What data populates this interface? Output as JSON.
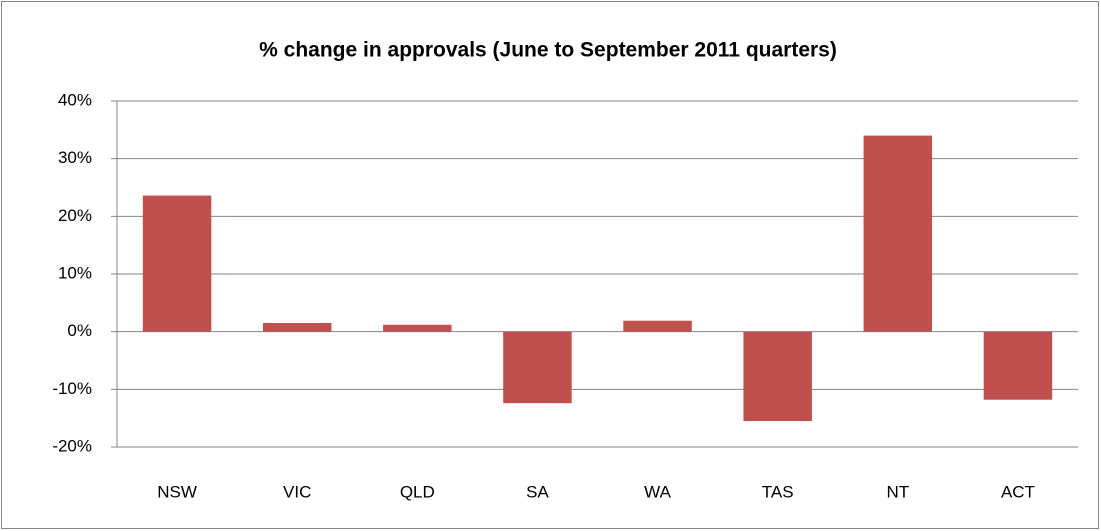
{
  "chart_data": {
    "type": "bar",
    "title": "% change in approvals (June to September 2011 quarters)",
    "categories": [
      "NSW",
      "VIC",
      "QLD",
      "SA",
      "WA",
      "TAS",
      "NT",
      "ACT"
    ],
    "values": [
      23.6,
      1.5,
      1.2,
      -12.4,
      1.9,
      -15.5,
      34,
      -11.8
    ],
    "color": "#c0504d",
    "ylim": [
      -20,
      40
    ],
    "yticks": [
      {
        "value": -20,
        "label": "-20%"
      },
      {
        "value": -10,
        "label": "-10%"
      },
      {
        "value": 0,
        "label": "0%"
      },
      {
        "value": 10,
        "label": "10%"
      },
      {
        "value": 20,
        "label": "20%"
      },
      {
        "value": 30,
        "label": "30%"
      },
      {
        "value": 40,
        "label": "40%"
      }
    ],
    "grid": true
  }
}
